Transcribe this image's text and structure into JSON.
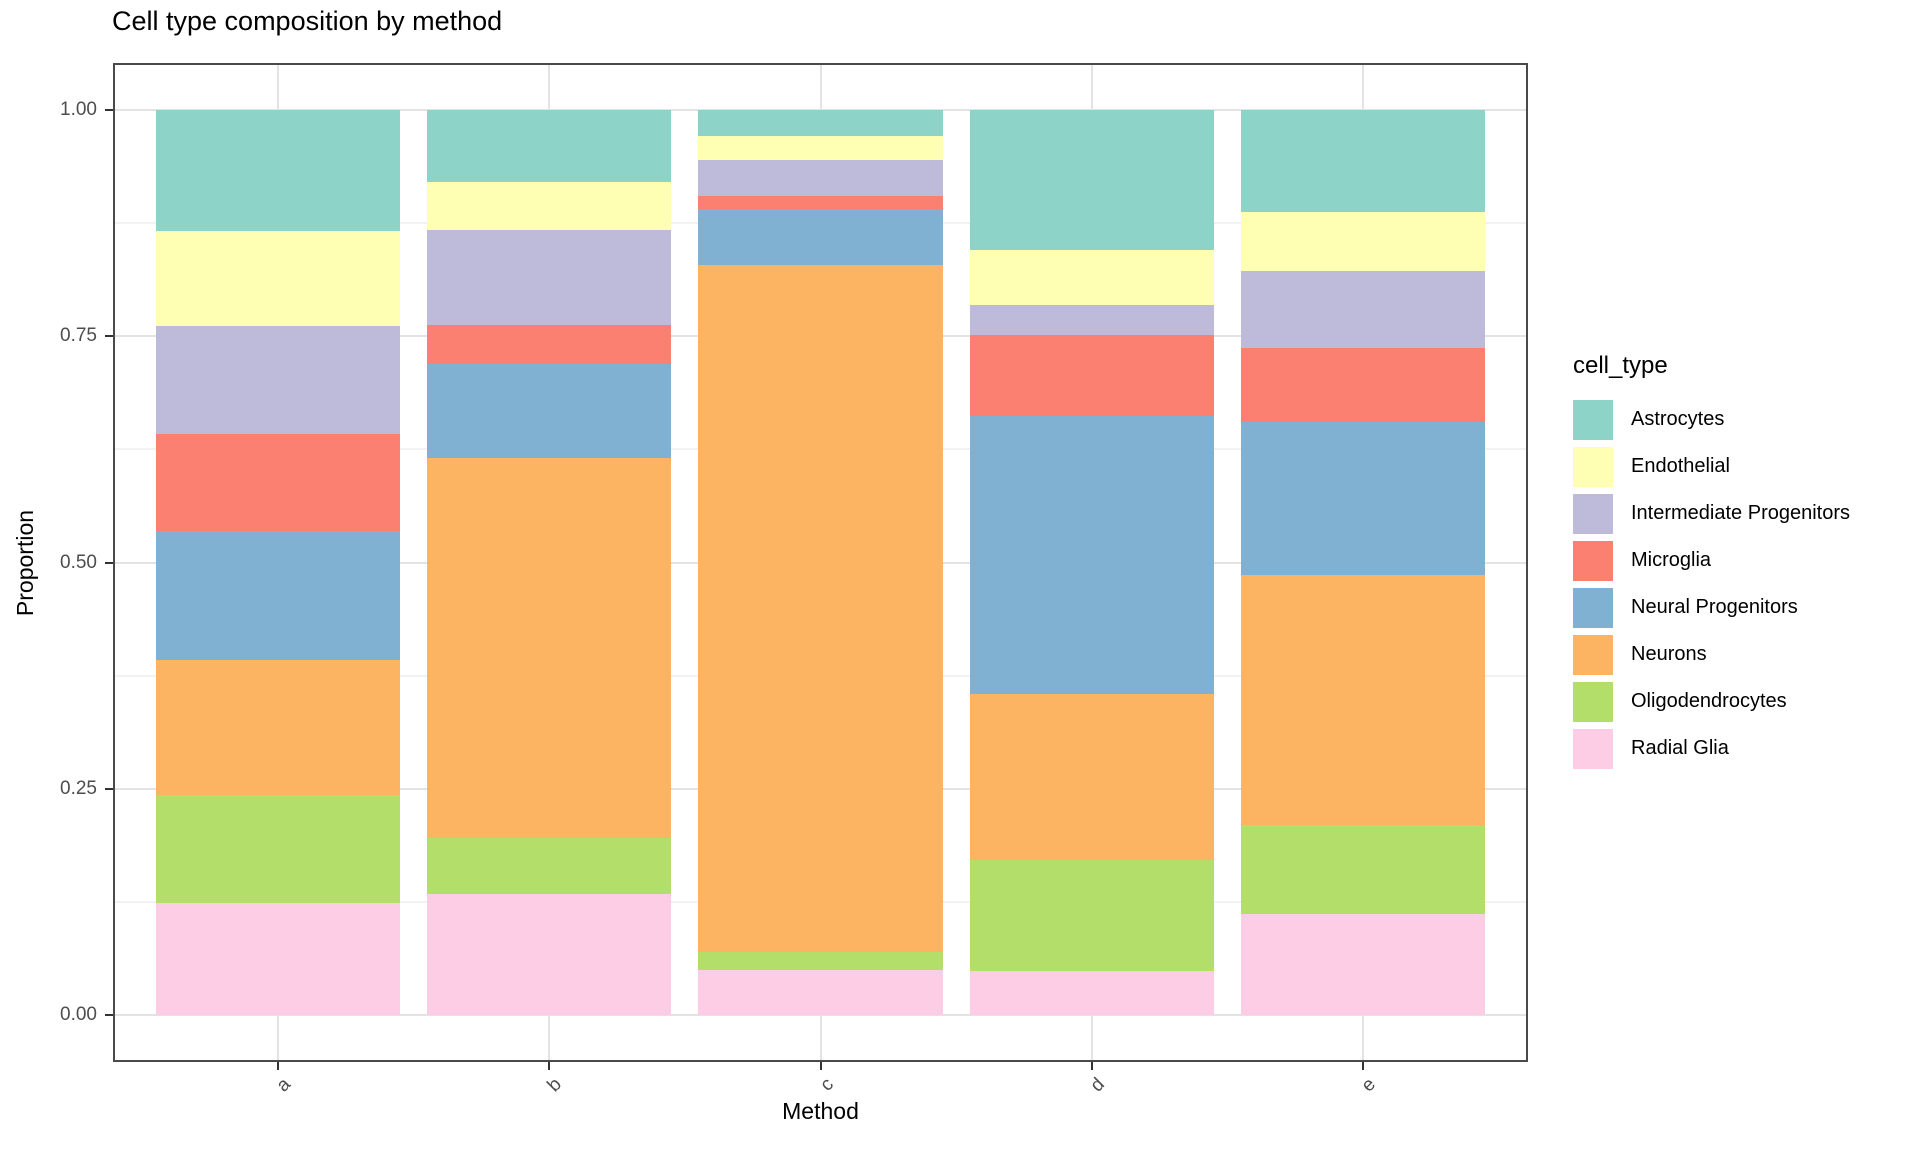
{
  "chart_data": {
    "type": "bar",
    "variant": "stacked-proportion",
    "title": "Cell type composition by method",
    "xlabel": "Method",
    "ylabel": "Proportion",
    "legend_title": "cell_type",
    "legend_position": "right",
    "categories": [
      "a",
      "b",
      "c",
      "d",
      "e"
    ],
    "ylim": [
      0,
      1
    ],
    "yticks": [
      {
        "v": 0.0,
        "label": "0.00"
      },
      {
        "v": 0.25,
        "label": "0.25"
      },
      {
        "v": 0.5,
        "label": "0.50"
      },
      {
        "v": 0.75,
        "label": "0.75"
      },
      {
        "v": 1.0,
        "label": "1.00"
      }
    ],
    "yminor": [
      0.125,
      0.375,
      0.625,
      0.875
    ],
    "grid": "horizontal major+minor, vertical major at category centers",
    "stack_order_bottom_to_top": [
      "Radial Glia",
      "Oligodendrocytes",
      "Neurons",
      "Neural Progenitors",
      "Microglia",
      "Intermediate Progenitors",
      "Endothelial",
      "Astrocytes"
    ],
    "series": [
      {
        "name": "Astrocytes",
        "color": "#8DD3C7",
        "values": [
          0.133,
          0.079,
          0.029,
          0.154,
          0.112
        ]
      },
      {
        "name": "Endothelial",
        "color": "#FFFFB3",
        "values": [
          0.106,
          0.053,
          0.026,
          0.061,
          0.066
        ]
      },
      {
        "name": "Intermediate Progenitors",
        "color": "#BEBADA",
        "values": [
          0.119,
          0.105,
          0.04,
          0.033,
          0.085
        ]
      },
      {
        "name": "Microglia",
        "color": "#FB8072",
        "values": [
          0.107,
          0.043,
          0.014,
          0.09,
          0.082
        ]
      },
      {
        "name": "Neural Progenitors",
        "color": "#80B1D3",
        "values": [
          0.143,
          0.104,
          0.062,
          0.307,
          0.169
        ]
      },
      {
        "name": "Neurons",
        "color": "#FDB462",
        "values": [
          0.149,
          0.421,
          0.76,
          0.184,
          0.276
        ]
      },
      {
        "name": "Oligodendrocytes",
        "color": "#B3DE69",
        "values": [
          0.119,
          0.062,
          0.02,
          0.123,
          0.099
        ]
      },
      {
        "name": "Radial Glia",
        "color": "#FCCDE5",
        "values": [
          0.124,
          0.133,
          0.049,
          0.048,
          0.111
        ]
      }
    ]
  }
}
